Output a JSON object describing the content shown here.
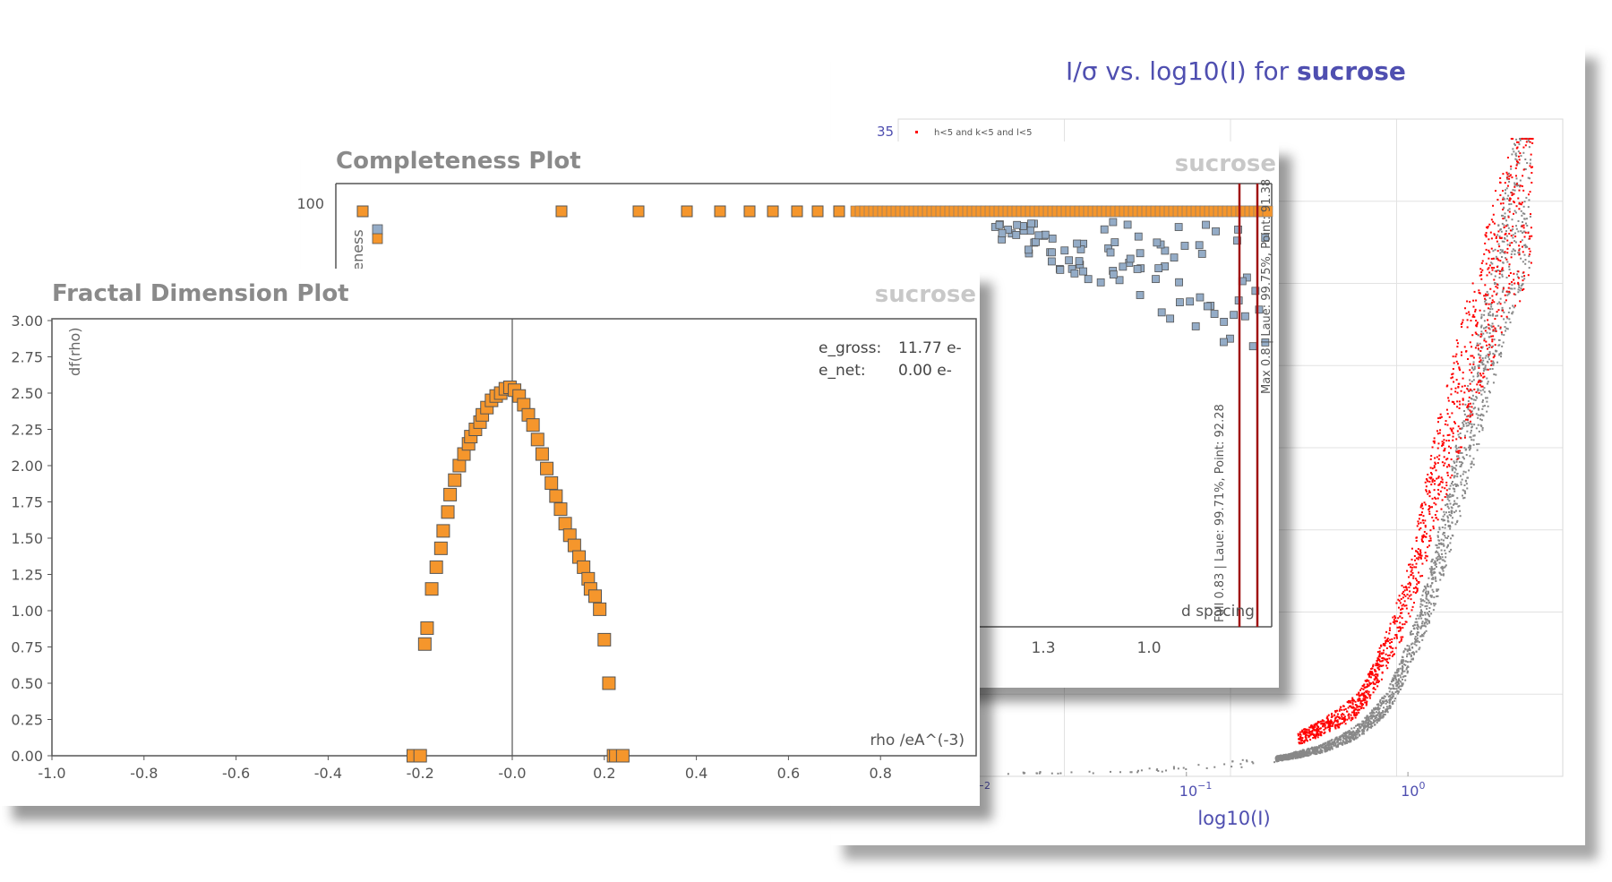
{
  "sigma_panel": {
    "title_prefix": "I/σ  vs. log10(I) for ",
    "title_bold": "sucrose",
    "xlabel": "log10(I)",
    "y_tick_label": "35",
    "legend_label": "h<5 and k<5 and l<5",
    "x_ticks": [
      {
        "base": "10",
        "exp": "−2",
        "value": 0.01
      },
      {
        "base": "10",
        "exp": "−1",
        "value": 0.1
      },
      {
        "base": "10",
        "exp": "0",
        "value": 1
      }
    ],
    "colors": {
      "title": "#4f4fb0",
      "highlight": "#ff0000",
      "points": "#888888"
    }
  },
  "completeness_panel": {
    "title": "Completeness Plot",
    "watermark": "sucrose",
    "ylabel": "Completeness",
    "y_tick": "100",
    "xlabel": "d spacing",
    "x_ticks": [
      "1.3",
      "1.0"
    ],
    "full_marker_label": "Full 0.83 | Laue: 99.71%, Point: 92.28",
    "max_marker_label": "Max 0.8 | Laue: 99.75%, Point: 91.38",
    "colors": {
      "orange": "#f5962c",
      "blue": "#94acc7",
      "marker_line": "#a01010"
    }
  },
  "fractal_panel": {
    "title": "Fractal Dimension Plot",
    "watermark": "sucrose",
    "ylabel": "df(rho)",
    "xlabel": "rho /eA^(-3)",
    "e_gross_label": "e_gross:",
    "e_gross_value": "11.77 e-",
    "e_net_label": "e_net:",
    "e_net_value": "0.00 e-",
    "y_ticks": [
      "0.00",
      "0.25",
      "0.50",
      "0.75",
      "1.00",
      "1.25",
      "1.50",
      "1.75",
      "2.00",
      "2.25",
      "2.50",
      "2.75",
      "3.00"
    ],
    "x_ticks": [
      "-1.0",
      "-0.8",
      "-0.6",
      "-0.4",
      "-0.2",
      "-0.0",
      "0.2",
      "0.4",
      "0.6",
      "0.8"
    ],
    "colors": {
      "orange": "#f5962c"
    }
  },
  "chart_data": [
    {
      "type": "scatter",
      "title": "I/σ  vs. log10(I) for sucrose",
      "xlabel": "log10(I)",
      "ylabel": "",
      "xscale": "log",
      "xlim": [
        0.005,
        5
      ],
      "ylim": [
        0,
        35
      ],
      "series": [
        {
          "name": "",
          "description_color": "#888888",
          "x": [
            0.01,
            0.05,
            0.1,
            0.2,
            0.4,
            0.6,
            0.8,
            1.0,
            1.3,
            1.6,
            2.0,
            2.5,
            3.0,
            3.5
          ],
          "y": [
            0.2,
            0.3,
            0.5,
            0.8,
            1.5,
            2.5,
            4.0,
            6.5,
            10.5,
            15.0,
            20.0,
            25.5,
            29.5,
            31.5
          ]
        },
        {
          "name": "h<5 and k<5 and l<5",
          "x": [
            0.3,
            0.6,
            1.0,
            1.3,
            1.6,
            2.0,
            2.4,
            2.8,
            3.2,
            3.6
          ],
          "y": [
            2.0,
            4.0,
            10.0,
            16.0,
            20.0,
            24.0,
            27.0,
            29.5,
            31.0,
            32.5
          ]
        }
      ],
      "legend": "top-left"
    },
    {
      "type": "scatter",
      "title": "Completeness Plot",
      "xlabel": "d spacing",
      "ylabel": "Completeness",
      "x_ticks": [
        "1.3",
        "1.0"
      ],
      "full_resolution": 0.83,
      "max_resolution": 0.8,
      "series": [
        {
          "name": "Laue",
          "color": "#f5962c",
          "x": [
            5.5,
            3.0,
            2.5,
            2.1,
            1.9,
            1.8,
            1.7,
            1.6,
            1.5,
            1.4,
            1.3,
            1.2,
            1.1,
            1.0,
            0.9,
            0.85,
            0.83
          ],
          "y": [
            100,
            100,
            100,
            100,
            100,
            100,
            100,
            100,
            100,
            100,
            100,
            100,
            100,
            100,
            100,
            100,
            99.71
          ]
        },
        {
          "name": "Point",
          "color": "#94acc7",
          "x": [
            5.5,
            3.0,
            2.5,
            2.1,
            1.9,
            1.7,
            1.5,
            1.4,
            1.3,
            1.2,
            1.1,
            1.0,
            0.95,
            0.9,
            0.87,
            0.85,
            0.83
          ],
          "y": [
            98,
            100,
            100,
            100,
            100,
            100,
            100,
            98,
            96,
            94,
            95,
            93,
            92,
            91,
            93,
            90,
            92.28
          ]
        }
      ]
    },
    {
      "type": "scatter",
      "title": "Fractal Dimension Plot",
      "xlabel": "rho /eA^(-3)",
      "ylabel": "df(rho)",
      "xlim": [
        -1.0,
        1.0
      ],
      "ylim": [
        0,
        3.0
      ],
      "series": [
        {
          "name": "",
          "x": [
            -0.215,
            -0.2,
            -0.19,
            -0.185,
            -0.175,
            -0.165,
            -0.155,
            -0.15,
            -0.14,
            -0.135,
            -0.125,
            -0.115,
            -0.105,
            -0.095,
            -0.09,
            -0.08,
            -0.07,
            -0.065,
            -0.055,
            -0.045,
            -0.035,
            -0.025,
            -0.015,
            -0.005,
            0.005,
            0.015,
            0.025,
            0.035,
            0.045,
            0.055,
            0.065,
            0.075,
            0.085,
            0.095,
            0.105,
            0.115,
            0.125,
            0.135,
            0.145,
            0.155,
            0.165,
            0.17,
            0.18,
            0.19,
            0.2,
            0.21,
            0.22,
            0.225,
            0.24
          ],
          "y": [
            0.0,
            0.0,
            0.77,
            0.88,
            1.15,
            1.3,
            1.43,
            1.55,
            1.68,
            1.8,
            1.9,
            2.0,
            2.08,
            2.15,
            2.2,
            2.25,
            2.3,
            2.35,
            2.4,
            2.45,
            2.48,
            2.5,
            2.53,
            2.54,
            2.52,
            2.48,
            2.42,
            2.35,
            2.28,
            2.18,
            2.08,
            1.98,
            1.88,
            1.79,
            1.7,
            1.6,
            1.52,
            1.45,
            1.37,
            1.3,
            1.22,
            1.15,
            1.1,
            1.01,
            0.8,
            0.5,
            0.0,
            0.0,
            0.0
          ]
        }
      ]
    }
  ]
}
